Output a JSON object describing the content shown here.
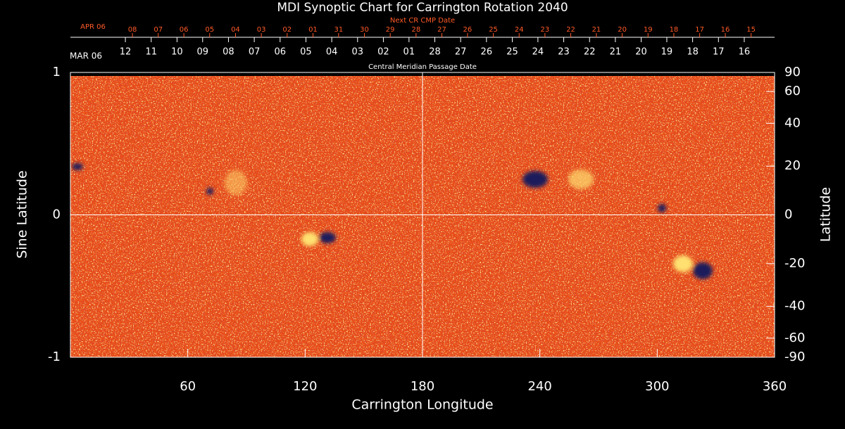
{
  "chart_data": {
    "type": "image",
    "title": "MDI Synoptic Chart for Carrington Rotation 2040",
    "xlabel": "Carrington Longitude",
    "ylabel": "Sine Latitude",
    "y2label": "Latitude",
    "xlim": [
      0,
      360
    ],
    "xticks": [
      60,
      120,
      180,
      240,
      300,
      360
    ],
    "ylim": [
      -1,
      1
    ],
    "yticks": [
      -1,
      0,
      1
    ],
    "y2lim": [
      -90,
      90
    ],
    "y2scale": "sine",
    "y2ticks": [
      90,
      60,
      40,
      20,
      0,
      -20,
      -40,
      -60,
      -90
    ],
    "crosshair": true,
    "top_axes": [
      {
        "title": "Next CR CMP Date",
        "start_label": "APR 06",
        "color": "#ff5a28",
        "ticks": [
          {
            "value": 31.7,
            "label": "08"
          },
          {
            "value": 44.9,
            "label": "07"
          },
          {
            "value": 58.0,
            "label": "06"
          },
          {
            "value": 71.2,
            "label": "05"
          },
          {
            "value": 84.4,
            "label": "04"
          },
          {
            "value": 97.6,
            "label": "03"
          },
          {
            "value": 110.8,
            "label": "02"
          },
          {
            "value": 124.0,
            "label": "01"
          },
          {
            "value": 137.1,
            "label": "31"
          },
          {
            "value": 150.3,
            "label": "30"
          },
          {
            "value": 163.5,
            "label": "29"
          },
          {
            "value": 176.7,
            "label": "28"
          },
          {
            "value": 189.9,
            "label": "27"
          },
          {
            "value": 203.0,
            "label": "26"
          },
          {
            "value": 216.2,
            "label": "25"
          },
          {
            "value": 229.4,
            "label": "24"
          },
          {
            "value": 242.6,
            "label": "23"
          },
          {
            "value": 255.8,
            "label": "22"
          },
          {
            "value": 268.9,
            "label": "21"
          },
          {
            "value": 282.1,
            "label": "20"
          },
          {
            "value": 295.3,
            "label": "19"
          },
          {
            "value": 308.5,
            "label": "18"
          },
          {
            "value": 321.7,
            "label": "17"
          },
          {
            "value": 334.8,
            "label": "16"
          },
          {
            "value": 348.0,
            "label": "15"
          }
        ]
      },
      {
        "title": "Central Meridian Passage Date",
        "start_label": "MAR 06",
        "color": "#ffffff",
        "ticks": [
          {
            "value": 28.1,
            "label": "12"
          },
          {
            "value": 41.3,
            "label": "11"
          },
          {
            "value": 54.5,
            "label": "10"
          },
          {
            "value": 67.6,
            "label": "09"
          },
          {
            "value": 80.8,
            "label": "08"
          },
          {
            "value": 94.0,
            "label": "07"
          },
          {
            "value": 107.2,
            "label": "06"
          },
          {
            "value": 120.4,
            "label": "05"
          },
          {
            "value": 133.6,
            "label": "04"
          },
          {
            "value": 146.8,
            "label": "03"
          },
          {
            "value": 160.0,
            "label": "02"
          },
          {
            "value": 173.1,
            "label": "01"
          },
          {
            "value": 186.3,
            "label": "28"
          },
          {
            "value": 199.5,
            "label": "27"
          },
          {
            "value": 212.7,
            "label": "26"
          },
          {
            "value": 225.9,
            "label": "25"
          },
          {
            "value": 239.0,
            "label": "24"
          },
          {
            "value": 252.2,
            "label": "23"
          },
          {
            "value": 265.4,
            "label": "22"
          },
          {
            "value": 278.6,
            "label": "21"
          },
          {
            "value": 291.8,
            "label": "20"
          },
          {
            "value": 304.9,
            "label": "19"
          },
          {
            "value": 318.1,
            "label": "18"
          },
          {
            "value": 331.3,
            "label": "17"
          },
          {
            "value": 344.5,
            "label": "16"
          }
        ]
      }
    ]
  }
}
